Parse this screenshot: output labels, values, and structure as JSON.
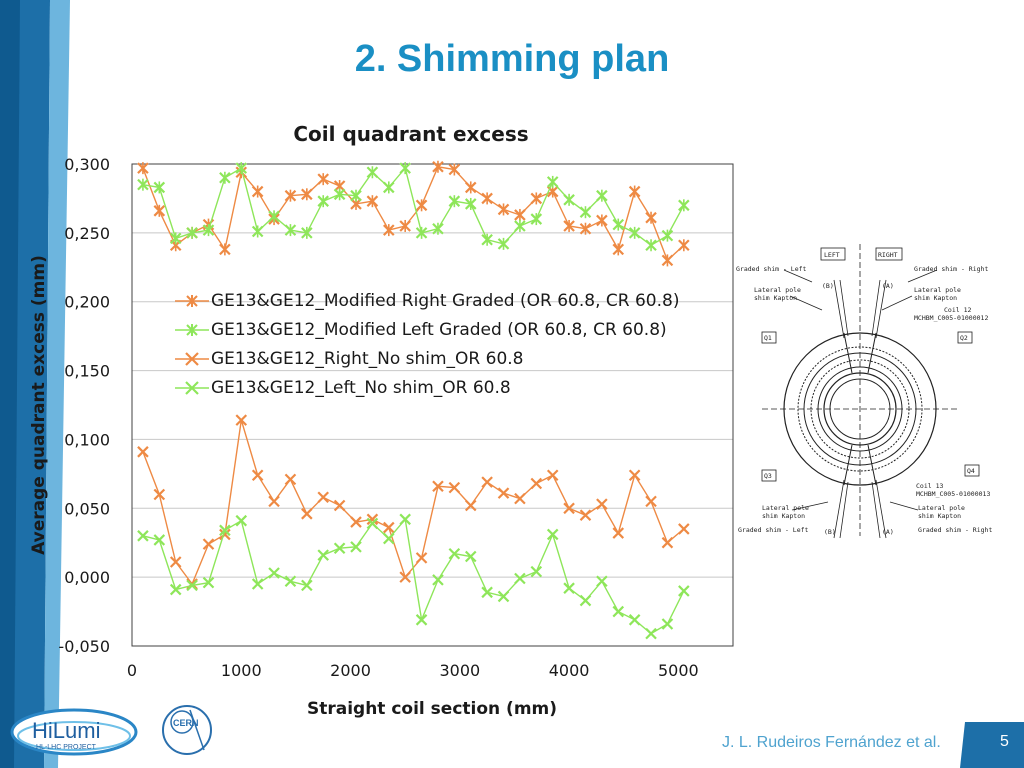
{
  "slide": {
    "title": "2. Shimming plan",
    "author": "J. L. Rudeiros Fernández et al.",
    "page_number": "5",
    "accent_color": "#1a8fc4",
    "frame_color": "#1d6fa8"
  },
  "logos": {
    "hilumi_text": "HiLumi",
    "hilumi_subtext": "HL-LHC PROJECT",
    "cern_text": "CERN"
  },
  "diagram": {
    "label_left": "LEFT",
    "label_right": "RIGHT",
    "graded_shim_left_top": "Graded shim - Left",
    "graded_shim_right_top": "Graded shim - Right",
    "lateral_pole_left_top": "Lateral pole",
    "kapton_left_top": "shim Kapton",
    "lateral_pole_right_top": "Lateral pole",
    "kapton_right_top": "shim Kapton",
    "b_top": "(B)",
    "a_top": "(A)",
    "coil12": "Coil 12",
    "coil12_id": "MCHBM_C005-01000012",
    "q1": "Q1",
    "q2": "Q2",
    "q3": "Q3",
    "q4": "Q4",
    "coil13": "Coil 13",
    "coil13_id": "MCHBM_C005-01000013",
    "lateral_pole_left_bot": "Lateral pole",
    "kapton_left_bot": "shim Kapton",
    "lateral_pole_right_bot": "Lateral pole",
    "kapton_right_bot": "shim Kapton",
    "graded_shim_left_bot": "Graded shim - Left",
    "graded_shim_right_bot": "Graded shim - Right",
    "b_bot": "(B)",
    "a_bot": "(A)"
  },
  "chart_data": {
    "type": "line",
    "title": "Coil quadrant excess",
    "xlabel": "Straight coil section (mm)",
    "ylabel": "Average quadrant excess (mm)",
    "xlim": [
      0,
      5500
    ],
    "ylim": [
      -0.05,
      0.3
    ],
    "xticks": [
      0,
      1000,
      2000,
      3000,
      4000,
      5000
    ],
    "xtick_labels": [
      "0",
      "1000",
      "2000",
      "3000",
      "4000",
      "5000"
    ],
    "yticks": [
      -0.05,
      0,
      0.05,
      0.1,
      0.15,
      0.2,
      0.25,
      0.3
    ],
    "ytick_labels": [
      "-0,050",
      "0,000",
      "0,050",
      "0,100",
      "0,150",
      "0,200",
      "0,250",
      "0,300"
    ],
    "grid": "horizontal",
    "legend_position": "center-left",
    "x": [
      100,
      250,
      400,
      550,
      700,
      850,
      1000,
      1150,
      1300,
      1450,
      1600,
      1750,
      1900,
      2050,
      2200,
      2350,
      2500,
      2650,
      2800,
      2950,
      3100,
      3250,
      3400,
      3550,
      3700,
      3850,
      4000,
      4150,
      4300,
      4450,
      4600,
      4750,
      4900,
      5050
    ],
    "series": [
      {
        "name": "GE13&GE12_Modified Right Graded (OR 60.8, CR 60.8)",
        "color": "#ee8a44",
        "marker": "star",
        "values": [
          0.297,
          0.266,
          0.241,
          0.25,
          0.256,
          0.238,
          0.294,
          0.28,
          0.26,
          0.277,
          0.278,
          0.289,
          0.284,
          0.271,
          0.273,
          0.252,
          0.255,
          0.27,
          0.298,
          0.296,
          0.283,
          0.275,
          0.267,
          0.263,
          0.275,
          0.28,
          0.255,
          0.253,
          0.259,
          0.238,
          0.28,
          0.261,
          0.23,
          0.241
        ]
      },
      {
        "name": "GE13&GE12_Modified Left Graded (OR 60.8, CR 60.8)",
        "color": "#8ee65a",
        "marker": "star",
        "values": [
          0.285,
          0.283,
          0.246,
          0.25,
          0.252,
          0.29,
          0.297,
          0.251,
          0.262,
          0.252,
          0.25,
          0.273,
          0.278,
          0.277,
          0.294,
          0.283,
          0.297,
          0.25,
          0.253,
          0.273,
          0.271,
          0.245,
          0.242,
          0.255,
          0.26,
          0.287,
          0.274,
          0.265,
          0.277,
          0.256,
          0.25,
          0.241,
          0.248,
          0.27
        ]
      },
      {
        "name": "GE13&GE12_Right_No shim_OR 60.8",
        "color": "#ee8a44",
        "marker": "x",
        "values": [
          0.091,
          0.06,
          0.011,
          -0.005,
          0.024,
          0.031,
          0.114,
          0.074,
          0.055,
          0.071,
          0.046,
          0.058,
          0.052,
          0.04,
          0.042,
          0.036,
          0.0,
          0.014,
          0.066,
          0.065,
          0.052,
          0.069,
          0.061,
          0.057,
          0.068,
          0.074,
          0.05,
          0.045,
          0.053,
          0.032,
          0.074,
          0.055,
          0.025,
          0.035
        ]
      },
      {
        "name": "GE13&GE12_Left_No shim_OR 60.8",
        "color": "#8ee65a",
        "marker": "x",
        "values": [
          0.03,
          0.027,
          -0.009,
          -0.006,
          -0.004,
          0.034,
          0.041,
          -0.005,
          0.003,
          -0.003,
          -0.006,
          0.016,
          0.021,
          0.022,
          0.039,
          0.028,
          0.042,
          -0.031,
          -0.002,
          0.017,
          0.015,
          -0.011,
          -0.014,
          -0.001,
          0.004,
          0.031,
          -0.008,
          -0.017,
          -0.003,
          -0.025,
          -0.031,
          -0.041,
          -0.034,
          -0.01
        ]
      }
    ]
  }
}
